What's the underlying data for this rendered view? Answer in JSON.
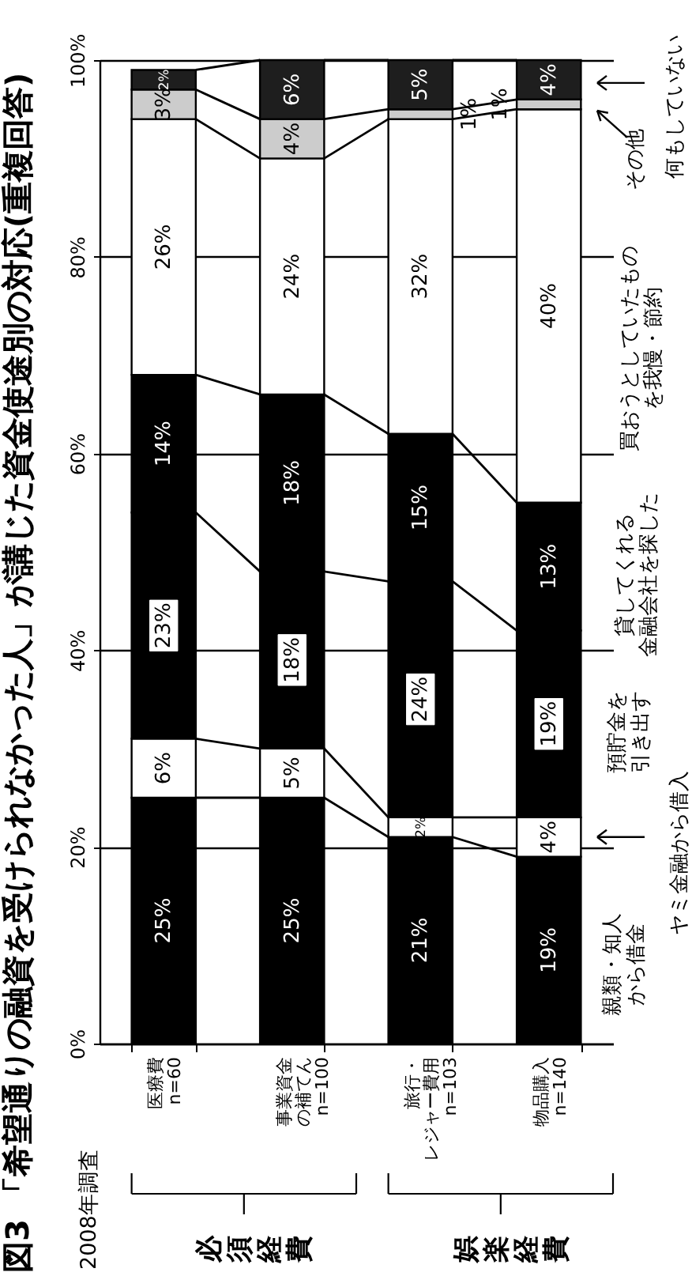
{
  "chart_data": {
    "type": "bar",
    "title": "図3 「希望通りの融資を受けられなかった人」が講じた資金使途別の対応(重複回答)",
    "subtitle": "2008年調査",
    "categories": [
      "医療費 n=60",
      "事業資金の補てん n=100",
      "旅行・レジャー費用 n=103",
      "物品購入 n=140"
    ],
    "stacked": true,
    "series": [
      {
        "name": "親類・知人から借金",
        "color": "#000000",
        "values": [
          25,
          25,
          21,
          19
        ],
        "value_labels": [
          "25%",
          "25%",
          "21%",
          "19%"
        ]
      },
      {
        "name": "ヤミ金融から借入",
        "color": "#ffffff",
        "values": [
          6,
          5,
          2,
          4
        ],
        "value_labels": [
          "6%",
          "5%",
          "2%",
          "4%"
        ]
      },
      {
        "name": "預貯金を引き出す",
        "color": "#000000",
        "values": [
          23,
          18,
          24,
          19
        ],
        "value_labels": [
          "23%",
          "18%",
          "24%",
          "19%"
        ]
      },
      {
        "name": "貸してくれる金融会社を探した",
        "color": "#000000",
        "values": [
          14,
          18,
          15,
          13
        ],
        "value_labels": [
          "14%",
          "18%",
          "15%",
          "13%"
        ]
      },
      {
        "name": "買おうとしていたものを我慢・節約",
        "color": "#ffffff",
        "values": [
          26,
          24,
          32,
          40
        ],
        "value_labels": [
          "26%",
          "24%",
          "32%",
          "40%"
        ]
      },
      {
        "name": "その他",
        "color": "#cccccc",
        "values": [
          3,
          4,
          1,
          1
        ],
        "value_labels": [
          "3%",
          "4%",
          "1%",
          "1%"
        ]
      },
      {
        "name": "何もしていない",
        "color": "#1e1e1e",
        "values": [
          2,
          6,
          5,
          4
        ],
        "value_labels": [
          "2%",
          "6%",
          "5%",
          "4%"
        ]
      }
    ],
    "ylim": [
      0,
      100
    ],
    "yticks": [
      {
        "value": 0,
        "label": "0%"
      },
      {
        "value": 20,
        "label": "20%"
      },
      {
        "value": 40,
        "label": "40%"
      },
      {
        "value": 60,
        "label": "60%"
      },
      {
        "value": 80,
        "label": "80%"
      },
      {
        "value": 100,
        "label": "100%"
      }
    ],
    "grid": "y",
    "legend": "right",
    "annotations": [
      "必須経費",
      "娯楽経費"
    ]
  }
}
